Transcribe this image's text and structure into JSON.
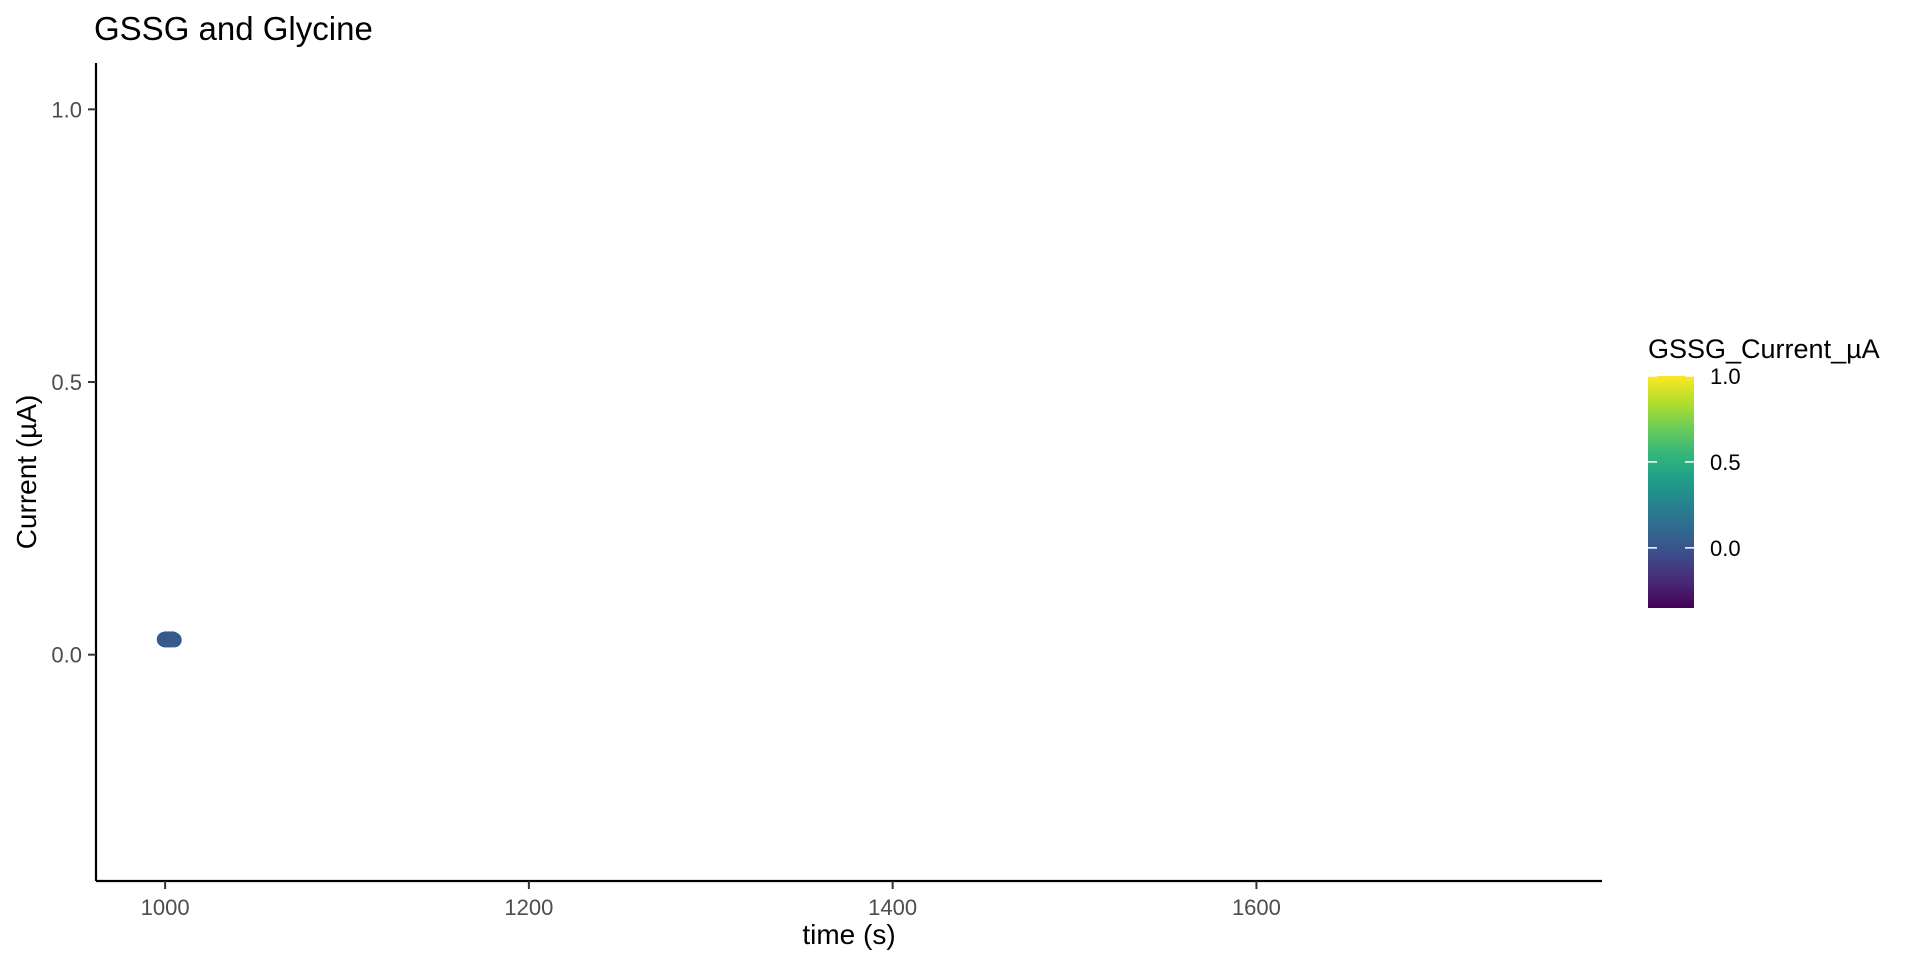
{
  "chart_data": {
    "type": "scatter",
    "title": "GSSG and Glycine",
    "xlabel": "time (s)",
    "ylabel": "Current (µA)",
    "xlim": [
      962,
      1790
    ],
    "ylim": [
      -0.415,
      1.085
    ],
    "x_ticks": [
      {
        "value": 1000,
        "label": "1000"
      },
      {
        "value": 1200,
        "label": "1200"
      },
      {
        "value": 1400,
        "label": "1400"
      },
      {
        "value": 1600,
        "label": "1600"
      }
    ],
    "y_ticks": [
      {
        "value": 0.0,
        "label": "0.0"
      },
      {
        "value": 0.5,
        "label": "0.5"
      },
      {
        "value": 1.0,
        "label": "1.0"
      }
    ],
    "grid": false,
    "points": [
      {
        "x": 999.5,
        "y": 0.028,
        "color_value": 0.028
      },
      {
        "x": 1000.0,
        "y": 0.027,
        "color_value": 0.027
      },
      {
        "x": 1000.5,
        "y": 0.029,
        "color_value": 0.029
      },
      {
        "x": 1001.0,
        "y": 0.028,
        "color_value": 0.028
      },
      {
        "x": 1001.5,
        "y": 0.027,
        "color_value": 0.027
      },
      {
        "x": 1002.0,
        "y": 0.029,
        "color_value": 0.029
      },
      {
        "x": 1002.5,
        "y": 0.028,
        "color_value": 0.028
      },
      {
        "x": 1003.0,
        "y": 0.027,
        "color_value": 0.027
      },
      {
        "x": 1003.5,
        "y": 0.028,
        "color_value": 0.028
      },
      {
        "x": 1004.0,
        "y": 0.029,
        "color_value": 0.029
      },
      {
        "x": 1004.5,
        "y": 0.028,
        "color_value": 0.028
      },
      {
        "x": 1005.0,
        "y": 0.027,
        "color_value": 0.027
      }
    ],
    "legend": {
      "title": "GSSG_Current_µA",
      "placement": "right",
      "type": "colorbar",
      "range": [
        -0.35,
        1.0
      ],
      "ticks": [
        {
          "value": 0.0,
          "label": "0.0"
        },
        {
          "value": 0.5,
          "label": "0.5"
        },
        {
          "value": 1.0,
          "label": "1.0"
        }
      ],
      "palette": [
        "#440154",
        "#482878",
        "#3E4A89",
        "#31688E",
        "#26828E",
        "#1F9E89",
        "#35B779",
        "#6DCD59",
        "#B4DE2C",
        "#FDE725"
      ]
    }
  }
}
